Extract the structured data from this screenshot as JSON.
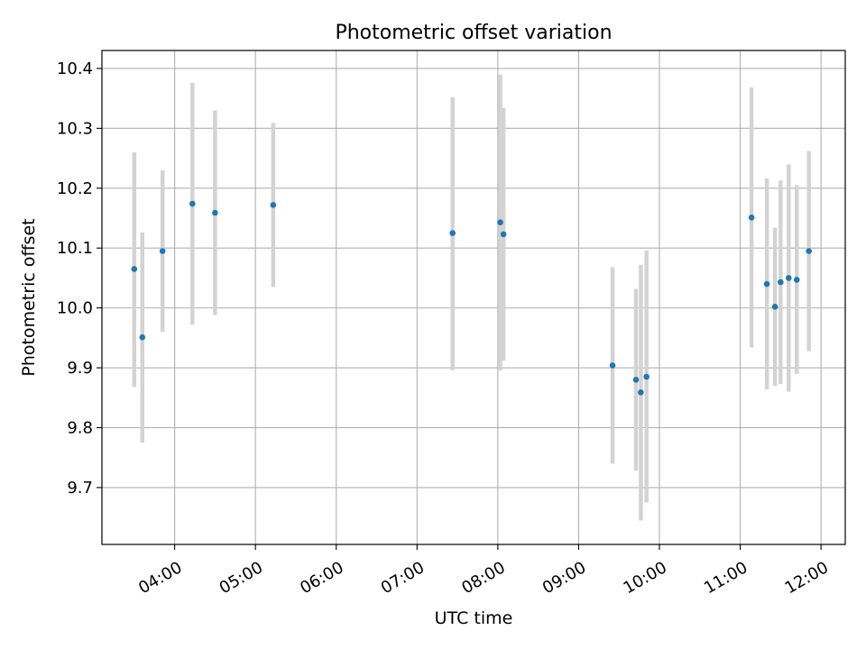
{
  "chart_data": {
    "type": "scatter",
    "title": "Photometric offset variation",
    "xlabel": "UTC time",
    "ylabel": "Photometric offset",
    "x_unit": "hours (UTC)",
    "xlim": [
      3.1,
      12.3
    ],
    "ylim": [
      9.605,
      10.43
    ],
    "x_ticks": [
      {
        "value": 4,
        "label": "04:00"
      },
      {
        "value": 5,
        "label": "05:00"
      },
      {
        "value": 6,
        "label": "06:00"
      },
      {
        "value": 7,
        "label": "07:00"
      },
      {
        "value": 8,
        "label": "08:00"
      },
      {
        "value": 9,
        "label": "09:00"
      },
      {
        "value": 10,
        "label": "10:00"
      },
      {
        "value": 11,
        "label": "11:00"
      },
      {
        "value": 12,
        "label": "12:00"
      }
    ],
    "y_ticks": [
      {
        "value": 9.7,
        "label": "9.7"
      },
      {
        "value": 9.8,
        "label": "9.8"
      },
      {
        "value": 9.9,
        "label": "9.9"
      },
      {
        "value": 10.0,
        "label": "10.0"
      },
      {
        "value": 10.1,
        "label": "10.1"
      },
      {
        "value": 10.2,
        "label": "10.2"
      },
      {
        "value": 10.3,
        "label": "10.3"
      },
      {
        "value": 10.4,
        "label": "10.4"
      }
    ],
    "grid": true,
    "point_color": "#1f77b4",
    "errorbar_color": "#d3d3d3",
    "points": [
      {
        "x": 3.5,
        "y": 10.065,
        "ylo": 9.868,
        "yhi": 10.26
      },
      {
        "x": 3.6,
        "y": 9.951,
        "ylo": 9.775,
        "yhi": 10.126
      },
      {
        "x": 3.85,
        "y": 10.095,
        "ylo": 9.96,
        "yhi": 10.23
      },
      {
        "x": 4.22,
        "y": 10.174,
        "ylo": 9.972,
        "yhi": 10.376
      },
      {
        "x": 4.5,
        "y": 10.159,
        "ylo": 9.988,
        "yhi": 10.33
      },
      {
        "x": 5.22,
        "y": 10.172,
        "ylo": 10.035,
        "yhi": 10.309
      },
      {
        "x": 7.44,
        "y": 10.125,
        "ylo": 9.896,
        "yhi": 10.352
      },
      {
        "x": 8.03,
        "y": 10.143,
        "ylo": 9.896,
        "yhi": 10.39
      },
      {
        "x": 8.07,
        "y": 10.123,
        "ylo": 9.912,
        "yhi": 10.334
      },
      {
        "x": 9.42,
        "y": 9.904,
        "ylo": 9.74,
        "yhi": 10.068
      },
      {
        "x": 9.71,
        "y": 9.88,
        "ylo": 9.728,
        "yhi": 10.032
      },
      {
        "x": 9.77,
        "y": 9.859,
        "ylo": 9.645,
        "yhi": 10.072
      },
      {
        "x": 9.84,
        "y": 9.885,
        "ylo": 9.675,
        "yhi": 10.096
      },
      {
        "x": 11.14,
        "y": 10.151,
        "ylo": 9.934,
        "yhi": 10.368
      },
      {
        "x": 11.33,
        "y": 10.04,
        "ylo": 9.864,
        "yhi": 10.216
      },
      {
        "x": 11.43,
        "y": 10.002,
        "ylo": 9.87,
        "yhi": 10.134
      },
      {
        "x": 11.5,
        "y": 10.043,
        "ylo": 9.873,
        "yhi": 10.213
      },
      {
        "x": 11.6,
        "y": 10.05,
        "ylo": 9.86,
        "yhi": 10.24
      },
      {
        "x": 11.7,
        "y": 10.047,
        "ylo": 9.89,
        "yhi": 10.205
      },
      {
        "x": 11.85,
        "y": 10.095,
        "ylo": 9.928,
        "yhi": 10.262
      }
    ]
  }
}
